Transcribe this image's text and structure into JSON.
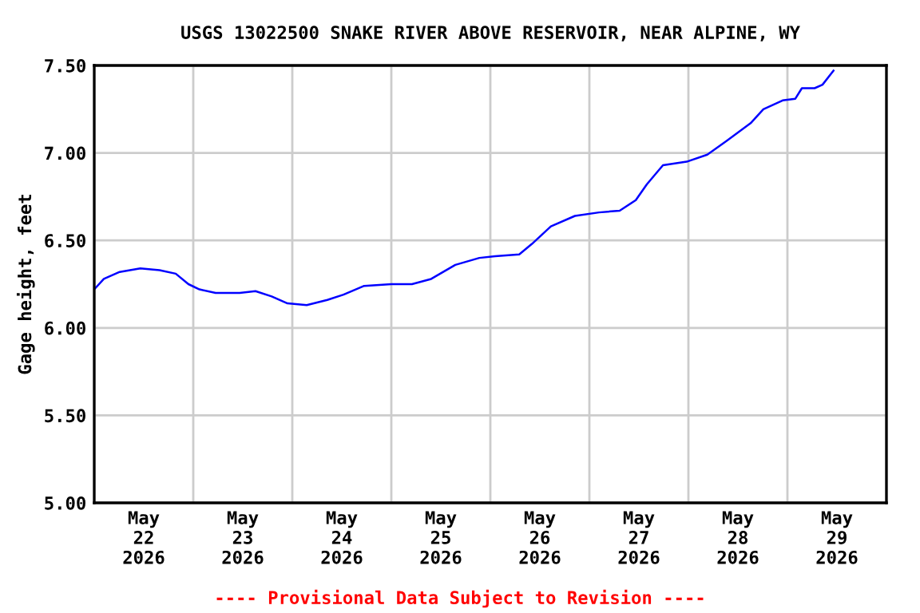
{
  "chart_data": {
    "type": "line",
    "title": "USGS 13022500 SNAKE RIVER ABOVE RESERVOIR, NEAR ALPINE, WY",
    "ylabel": "Gage height, feet",
    "annotations": [
      "---- Provisional Data Subject to Revision ----"
    ],
    "x": [
      "2026-05-22T00:00",
      "2026-05-22T02:20",
      "2026-05-22T06:10",
      "2026-05-22T11:10",
      "2026-05-22T15:50",
      "2026-05-22T19:45",
      "2026-05-22T22:50",
      "2026-05-23T01:30",
      "2026-05-23T05:25",
      "2026-05-23T11:15",
      "2026-05-23T15:05",
      "2026-05-23T19:00",
      "2026-05-23T22:50",
      "2026-05-24T03:30",
      "2026-05-24T08:30",
      "2026-05-24T12:25",
      "2026-05-24T17:25",
      "2026-05-25T00:00",
      "2026-05-25T05:00",
      "2026-05-25T09:40",
      "2026-05-25T15:30",
      "2026-05-25T21:20",
      "2026-05-26T01:10",
      "2026-05-26T07:00",
      "2026-05-26T10:05",
      "2026-05-26T14:40",
      "2026-05-26T20:30",
      "2026-05-27T02:20",
      "2026-05-27T07:20",
      "2026-05-27T11:15",
      "2026-05-27T13:55",
      "2026-05-27T17:50",
      "2026-05-27T23:35",
      "2026-05-28T04:35",
      "2026-05-28T09:20",
      "2026-05-28T15:05",
      "2026-05-28T18:10",
      "2026-05-28T22:50",
      "2026-05-29T01:55",
      "2026-05-29T03:30",
      "2026-05-29T06:35",
      "2026-05-29T08:30",
      "2026-05-29T11:10"
    ],
    "series": [
      {
        "color": "#0000ff",
        "values": [
          6.22,
          6.28,
          6.32,
          6.34,
          6.33,
          6.31,
          6.25,
          6.22,
          6.2,
          6.2,
          6.21,
          6.18,
          6.14,
          6.13,
          6.16,
          6.19,
          6.24,
          6.25,
          6.25,
          6.28,
          6.36,
          6.4,
          6.41,
          6.42,
          6.48,
          6.58,
          6.64,
          6.66,
          6.67,
          6.73,
          6.82,
          6.93,
          6.95,
          6.99,
          7.07,
          7.17,
          7.25,
          7.3,
          7.31,
          7.37,
          7.37,
          7.39,
          7.47
        ]
      }
    ],
    "xlim": [
      "2026-05-22T00:00",
      "2026-05-30T00:00"
    ],
    "xticks": [
      {
        "value": "2026-05-22T00:00",
        "label": null
      },
      {
        "value": "2026-05-22T12:00",
        "label": "May\n22\n2026"
      },
      {
        "value": "2026-05-23T00:00",
        "label": null
      },
      {
        "value": "2026-05-23T12:00",
        "label": "May\n23\n2026"
      },
      {
        "value": "2026-05-24T00:00",
        "label": null
      },
      {
        "value": "2026-05-24T12:00",
        "label": "May\n24\n2026"
      },
      {
        "value": "2026-05-25T00:00",
        "label": null
      },
      {
        "value": "2026-05-25T12:00",
        "label": "May\n25\n2026"
      },
      {
        "value": "2026-05-26T00:00",
        "label": null
      },
      {
        "value": "2026-05-26T12:00",
        "label": "May\n26\n2026"
      },
      {
        "value": "2026-05-27T00:00",
        "label": null
      },
      {
        "value": "2026-05-27T12:00",
        "label": "May\n27\n2026"
      },
      {
        "value": "2026-05-28T00:00",
        "label": null
      },
      {
        "value": "2026-05-28T12:00",
        "label": "May\n28\n2026"
      },
      {
        "value": "2026-05-29T00:00",
        "label": null
      },
      {
        "value": "2026-05-29T12:00",
        "label": "May\n29\n2026"
      },
      {
        "value": "2026-05-30T00:00",
        "label": null
      }
    ],
    "ylim": [
      5.0,
      7.5
    ],
    "yticks": [
      {
        "value": 5.0,
        "label": "5.00"
      },
      {
        "value": 5.5,
        "label": "5.50"
      },
      {
        "value": 6.0,
        "label": "6.00"
      },
      {
        "value": 6.5,
        "label": "6.50"
      },
      {
        "value": 7.0,
        "label": "7.00"
      },
      {
        "value": 7.5,
        "label": "7.50"
      }
    ],
    "grid": true,
    "line_style": "solid"
  }
}
